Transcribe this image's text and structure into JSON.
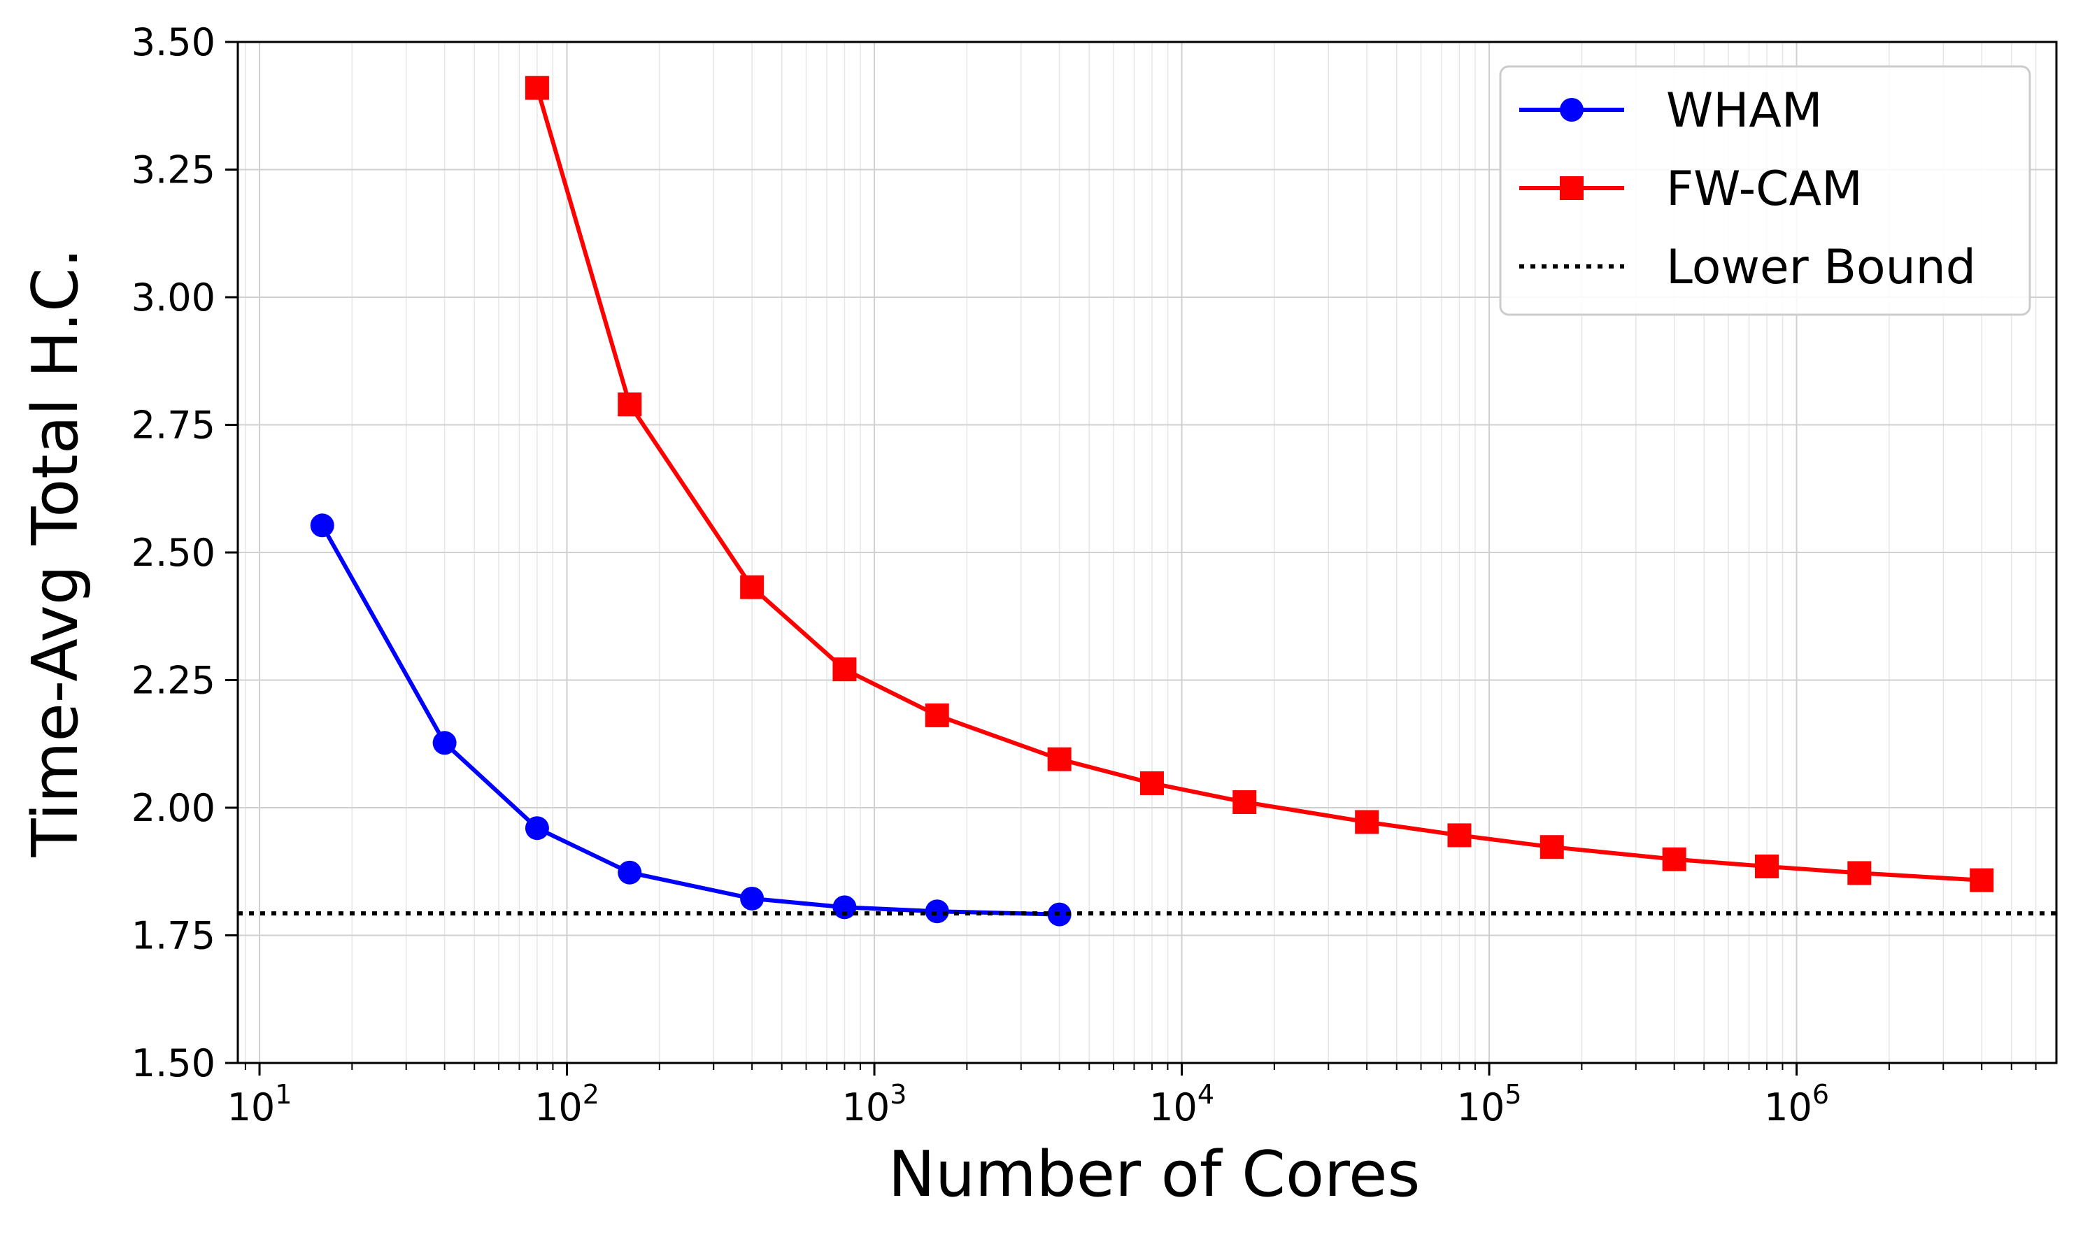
{
  "chart_data": {
    "type": "line",
    "title": "",
    "xlabel": "Number of Cores",
    "ylabel": "Time-Avg Total H.C.",
    "xscale": "log",
    "xlim": [
      8.5,
      7000000
    ],
    "ylim": [
      1.5,
      3.5
    ],
    "grid": true,
    "legend_position": "top-right",
    "yticks": [
      1.5,
      1.75,
      2.0,
      2.25,
      2.5,
      2.75,
      3.0,
      3.25,
      3.5
    ],
    "ytick_labels": [
      "1.50",
      "1.75",
      "2.00",
      "2.25",
      "2.50",
      "2.75",
      "3.00",
      "3.25",
      "3.50"
    ],
    "xticks": [
      10,
      100,
      1000,
      10000,
      100000,
      1000000
    ],
    "xtick_labels": [
      {
        "base": "10",
        "exp": "1"
      },
      {
        "base": "10",
        "exp": "2"
      },
      {
        "base": "10",
        "exp": "3"
      },
      {
        "base": "10",
        "exp": "4"
      },
      {
        "base": "10",
        "exp": "5"
      },
      {
        "base": "10",
        "exp": "6"
      }
    ],
    "series": [
      {
        "name": "WHAM",
        "color": "#0000ff",
        "marker": "circle",
        "x": [
          16,
          40,
          80,
          160,
          400,
          800,
          1600,
          4000
        ],
        "y": [
          2.553,
          2.127,
          1.96,
          1.873,
          1.822,
          1.805,
          1.797,
          1.791
        ]
      },
      {
        "name": "FW-CAM",
        "color": "#ff0000",
        "marker": "square",
        "x": [
          80,
          160,
          400,
          800,
          1600,
          4000,
          8000,
          16000,
          40000,
          80000,
          160000,
          400000,
          800000,
          1600000,
          4000000
        ],
        "y": [
          3.41,
          2.79,
          2.432,
          2.271,
          2.181,
          2.095,
          2.048,
          2.011,
          1.972,
          1.946,
          1.923,
          1.899,
          1.885,
          1.872,
          1.858
        ]
      },
      {
        "name": "Lower Bound",
        "color": "#000000",
        "style": "dotted",
        "y_const": 1.793
      }
    ]
  }
}
